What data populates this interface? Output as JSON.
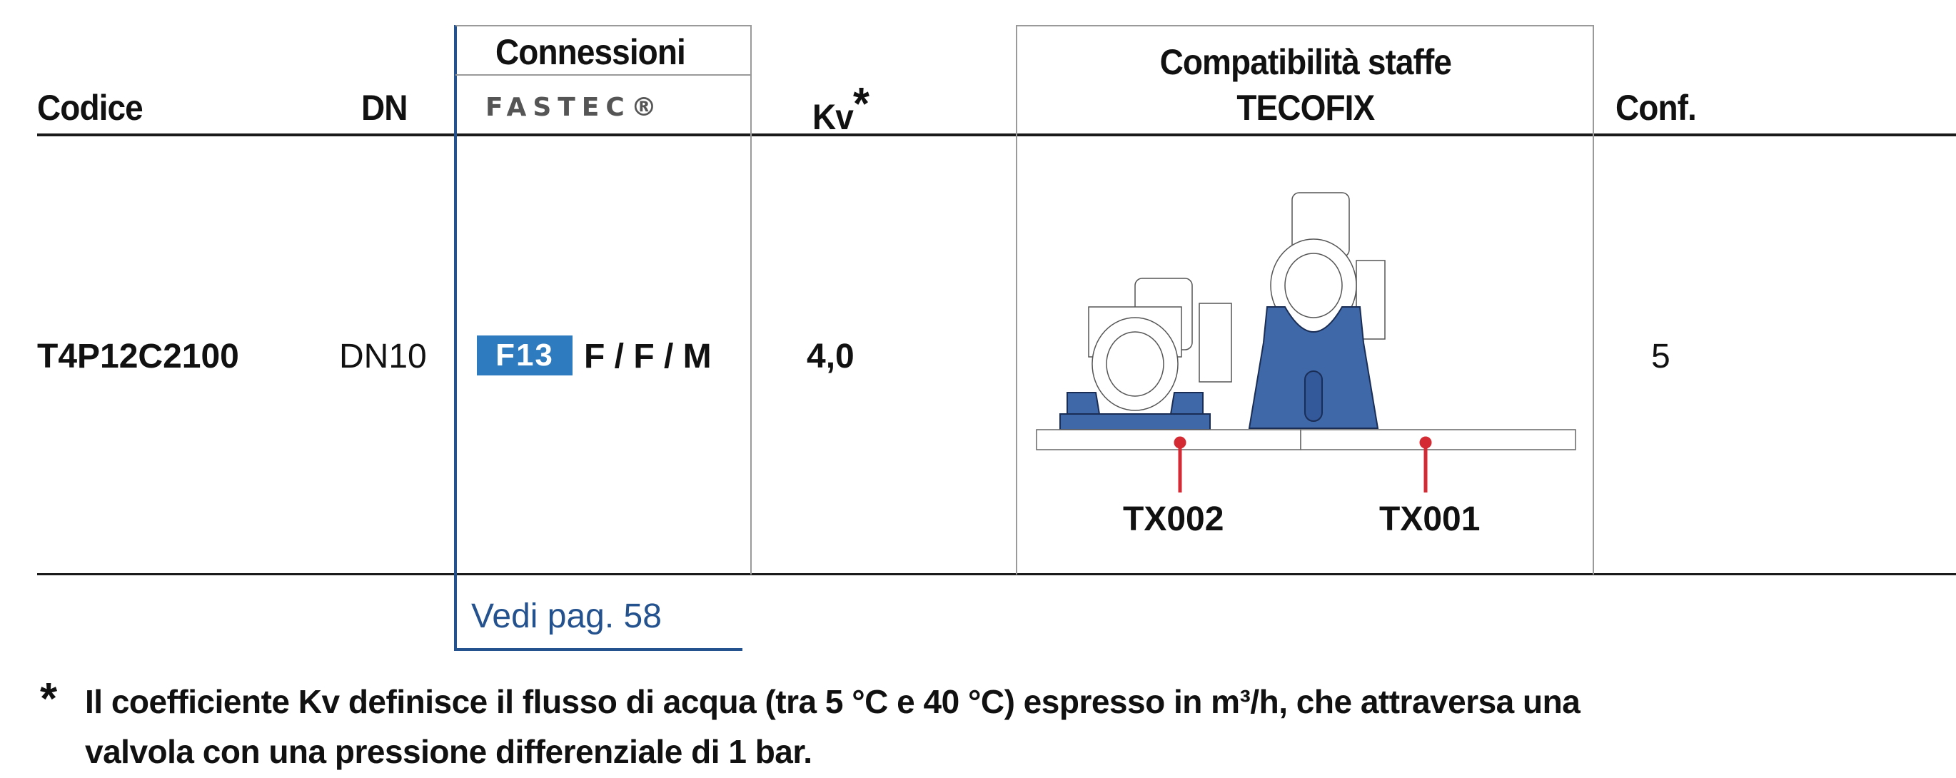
{
  "table": {
    "headers": {
      "codice": "Codice",
      "dn": "DN",
      "connessioni": "Connessioni",
      "fastec_logo": "FASTEC®",
      "kv": "Kv",
      "kv_asterisk": "*",
      "compat_line1": "Compatibilità staffe",
      "compat_line2": "TECOFIX",
      "conf": "Conf."
    },
    "rows": [
      {
        "codice": "T4P12C2100",
        "dn": "DN10",
        "connection_badge": "F13",
        "connessioni": "F / F / M",
        "kv": "4,0",
        "brackets": [
          "TX002",
          "TX001"
        ],
        "conf": "5"
      }
    ],
    "reference_link": "Vedi pag. 58"
  },
  "footnote": {
    "symbol": "*",
    "line1": "Il coefficiente Kv definisce il flusso di acqua (tra 5 °C e 40 °C) espresso in m³/h, che attraversa una",
    "line2": "valvola con una pressione differenziale di 1 bar."
  },
  "colors": {
    "accent_blue": "#24528e",
    "badge_blue": "#2f7bbf",
    "bracket_blue": "#3f68a8",
    "marker_red": "#d42a33"
  }
}
